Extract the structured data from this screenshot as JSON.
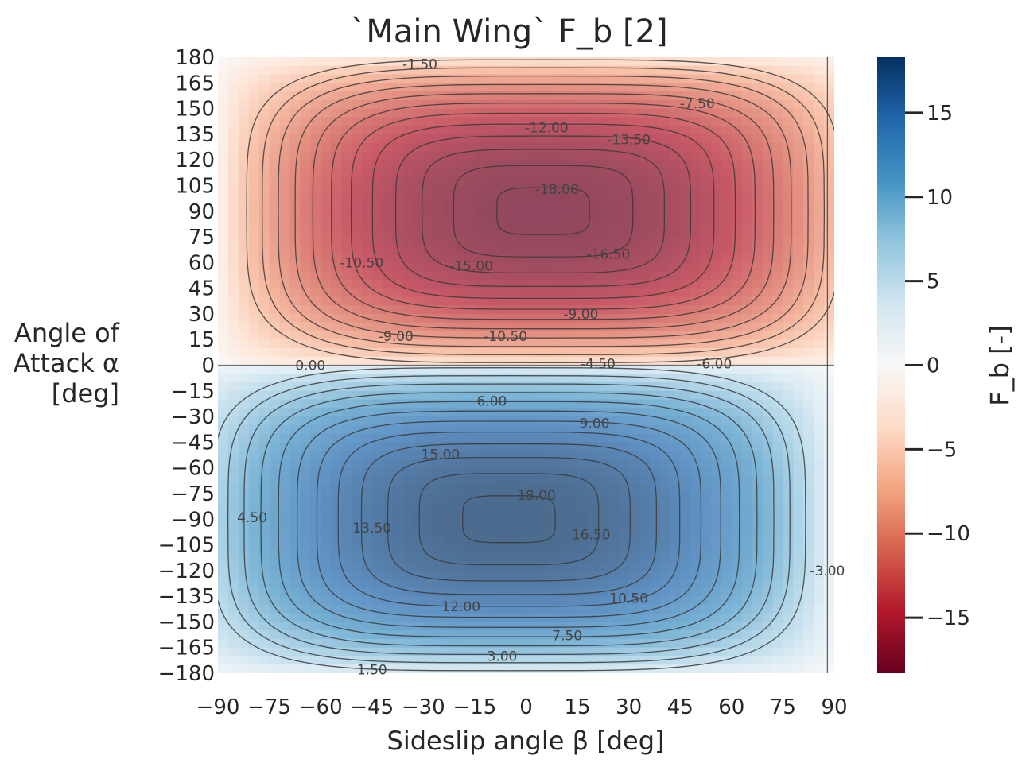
{
  "chart_data": {
    "type": "heatmap",
    "title": "`Main Wing` F_b [2]",
    "xlabel": "Sideslip angle β [deg]",
    "ylabel": [
      "Angle of",
      "Attack α",
      "[deg]"
    ],
    "colorbar_label": "F_b [-]",
    "xlim": [
      -90,
      90
    ],
    "ylim": [
      -180,
      180
    ],
    "x_ticks": [
      "−90",
      "−75",
      "−60",
      "−45",
      "−30",
      "−15",
      "0",
      "15",
      "30",
      "45",
      "60",
      "75",
      "90"
    ],
    "y_ticks": [
      "180",
      "165",
      "150",
      "135",
      "120",
      "105",
      "90",
      "75",
      "60",
      "45",
      "30",
      "15",
      "0",
      "−15",
      "−30",
      "−45",
      "−60",
      "−75",
      "−90",
      "−105",
      "−120",
      "−135",
      "−150",
      "−165",
      "−180"
    ],
    "colorbar_range": [
      -18.3,
      18.3
    ],
    "colorbar_ticks": [
      "15",
      "10",
      "5",
      "0",
      "−5",
      "−10",
      "−15"
    ],
    "colormap": "RdBu",
    "colorbar_stops": [
      "#67001f",
      "#b2182b",
      "#d6604d",
      "#f4a582",
      "#fddbc7",
      "#f7f7f7",
      "#d1e5f0",
      "#92c5de",
      "#4393c3",
      "#2166ac",
      "#053061"
    ],
    "contour_levels_negative": [
      -1.5,
      -3.0,
      -4.5,
      -6.0,
      -7.5,
      -9.0,
      -10.5,
      -12.0,
      -13.5,
      -15.0,
      -16.5,
      -18.0
    ],
    "contour_levels_positive": [
      1.5,
      3.0,
      4.5,
      6.0,
      7.5,
      9.0,
      10.5,
      12.0,
      13.5,
      15.0,
      16.5,
      18.0
    ],
    "peak_negative": {
      "x": 5,
      "y": 90,
      "value": -18.3
    },
    "peak_positive": {
      "x": -5,
      "y": -90,
      "value": 18.3
    },
    "contour_labels": [
      {
        "text": "-1.50",
        "x": -31,
        "y": 176
      },
      {
        "text": "-7.50",
        "x": 50,
        "y": 153
      },
      {
        "text": "-12.00",
        "x": 6,
        "y": 139
      },
      {
        "text": "-13.50",
        "x": 30,
        "y": 132
      },
      {
        "text": "-18.00",
        "x": 9,
        "y": 103
      },
      {
        "text": "-16.50",
        "x": 24,
        "y": 65
      },
      {
        "text": "-10.50",
        "x": -48,
        "y": 60
      },
      {
        "text": "-15.00",
        "x": -16,
        "y": 58
      },
      {
        "text": "-9.00",
        "x": 16,
        "y": 30
      },
      {
        "text": "-9.00",
        "x": -38,
        "y": 17
      },
      {
        "text": "-10.50",
        "x": -6,
        "y": 17
      },
      {
        "text": "-4.50",
        "x": 21,
        "y": 1
      },
      {
        "text": "-6.00",
        "x": 55,
        "y": 1
      },
      {
        "text": "0.00",
        "x": -63,
        "y": 0
      },
      {
        "text": "6.00",
        "x": -10,
        "y": -21
      },
      {
        "text": "9.00",
        "x": 20,
        "y": -34
      },
      {
        "text": "15.00",
        "x": -25,
        "y": -52
      },
      {
        "text": "18.00",
        "x": 3,
        "y": -76
      },
      {
        "text": "4.50",
        "x": -80,
        "y": -89
      },
      {
        "text": "13.50",
        "x": -45,
        "y": -95
      },
      {
        "text": "16.50",
        "x": 19,
        "y": -99
      },
      {
        "text": "12.00",
        "x": -19,
        "y": -141
      },
      {
        "text": "10.50",
        "x": 30,
        "y": -136
      },
      {
        "text": "7.50",
        "x": 12,
        "y": -158
      },
      {
        "text": "3.00",
        "x": -7,
        "y": -170
      },
      {
        "text": "1.50",
        "x": -45,
        "y": -178
      },
      {
        "text": "-3.00",
        "x": 88,
        "y": -120
      }
    ]
  }
}
